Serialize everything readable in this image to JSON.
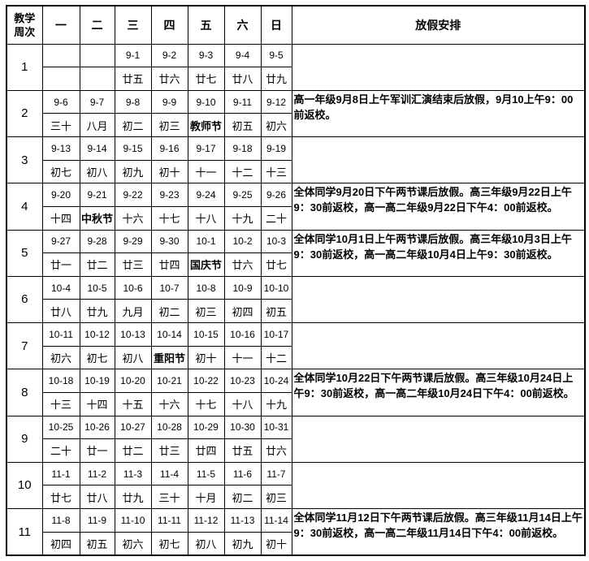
{
  "header": {
    "week_col": "教学周次",
    "days": [
      "一",
      "二",
      "三",
      "四",
      "五",
      "六",
      "日"
    ],
    "holiday_col": "放假安排"
  },
  "weeks": [
    {
      "num": "1",
      "dates": [
        "",
        "",
        "9-1",
        "9-2",
        "9-3",
        "9-4",
        "9-5"
      ],
      "lunar": [
        "",
        "",
        "廿五",
        "廿六",
        "廿七",
        "廿八",
        "廿九"
      ],
      "festival_index": null,
      "holiday": ""
    },
    {
      "num": "2",
      "dates": [
        "9-6",
        "9-7",
        "9-8",
        "9-9",
        "9-10",
        "9-11",
        "9-12"
      ],
      "lunar": [
        "三十",
        "八月",
        "初二",
        "初三",
        "教师节",
        "初五",
        "初六"
      ],
      "festival_index": 4,
      "holiday": "高一年级9月8日上午军训汇演结束后放假，9月10上午9：00前返校。"
    },
    {
      "num": "3",
      "dates": [
        "9-13",
        "9-14",
        "9-15",
        "9-16",
        "9-17",
        "9-18",
        "9-19"
      ],
      "lunar": [
        "初七",
        "初八",
        "初九",
        "初十",
        "十一",
        "十二",
        "十三"
      ],
      "festival_index": null,
      "holiday": ""
    },
    {
      "num": "4",
      "dates": [
        "9-20",
        "9-21",
        "9-22",
        "9-23",
        "9-24",
        "9-25",
        "9-26"
      ],
      "lunar": [
        "十四",
        "中秋节",
        "十六",
        "十七",
        "十八",
        "十九",
        "二十"
      ],
      "festival_index": 1,
      "holiday": "全体同学9月20日下午两节课后放假。高三年级9月22日上午9：30前返校，高一高二年级9月22日下午4：00前返校。"
    },
    {
      "num": "5",
      "dates": [
        "9-27",
        "9-28",
        "9-29",
        "9-30",
        "10-1",
        "10-2",
        "10-3"
      ],
      "lunar": [
        "廿一",
        "廿二",
        "廿三",
        "廿四",
        "国庆节",
        "廿六",
        "廿七"
      ],
      "festival_index": 4,
      "holiday": "全体同学10月1日上午两节课后放假。高三年级10月3日上午9：30前返校，高一高二年级10月4日上午9：30前返校。"
    },
    {
      "num": "6",
      "dates": [
        "10-4",
        "10-5",
        "10-6",
        "10-7",
        "10-8",
        "10-9",
        "10-10"
      ],
      "lunar": [
        "廿八",
        "廿九",
        "九月",
        "初二",
        "初三",
        "初四",
        "初五"
      ],
      "festival_index": null,
      "holiday": ""
    },
    {
      "num": "7",
      "dates": [
        "10-11",
        "10-12",
        "10-13",
        "10-14",
        "10-15",
        "10-16",
        "10-17"
      ],
      "lunar": [
        "初六",
        "初七",
        "初八",
        "重阳节",
        "初十",
        "十一",
        "十二"
      ],
      "festival_index": 3,
      "holiday": ""
    },
    {
      "num": "8",
      "dates": [
        "10-18",
        "10-19",
        "10-20",
        "10-21",
        "10-22",
        "10-23",
        "10-24"
      ],
      "lunar": [
        "十三",
        "十四",
        "十五",
        "十六",
        "十七",
        "十八",
        "十九"
      ],
      "festival_index": null,
      "holiday": "全体同学10月22日下午两节课后放假。高三年级10月24日上午9：30前返校，高一高二年级10月24日下午4：00前返校。"
    },
    {
      "num": "9",
      "dates": [
        "10-25",
        "10-26",
        "10-27",
        "10-28",
        "10-29",
        "10-30",
        "10-31"
      ],
      "lunar": [
        "二十",
        "廿一",
        "廿二",
        "廿三",
        "廿四",
        "廿五",
        "廿六"
      ],
      "festival_index": null,
      "holiday": ""
    },
    {
      "num": "10",
      "dates": [
        "11-1",
        "11-2",
        "11-3",
        "11-4",
        "11-5",
        "11-6",
        "11-7"
      ],
      "lunar": [
        "廿七",
        "廿八",
        "廿九",
        "三十",
        "十月",
        "初二",
        "初三"
      ],
      "festival_index": null,
      "holiday": ""
    },
    {
      "num": "11",
      "dates": [
        "11-8",
        "11-9",
        "11-10",
        "11-11",
        "11-12",
        "11-13",
        "11-14"
      ],
      "lunar": [
        "初四",
        "初五",
        "初六",
        "初七",
        "初八",
        "初九",
        "初十"
      ],
      "festival_index": null,
      "holiday": "全体同学11月12日下午两节课后放假。高三年级11月14日上午9：30前返校，高一高二年级11月14日下午4：00前返校。"
    }
  ]
}
